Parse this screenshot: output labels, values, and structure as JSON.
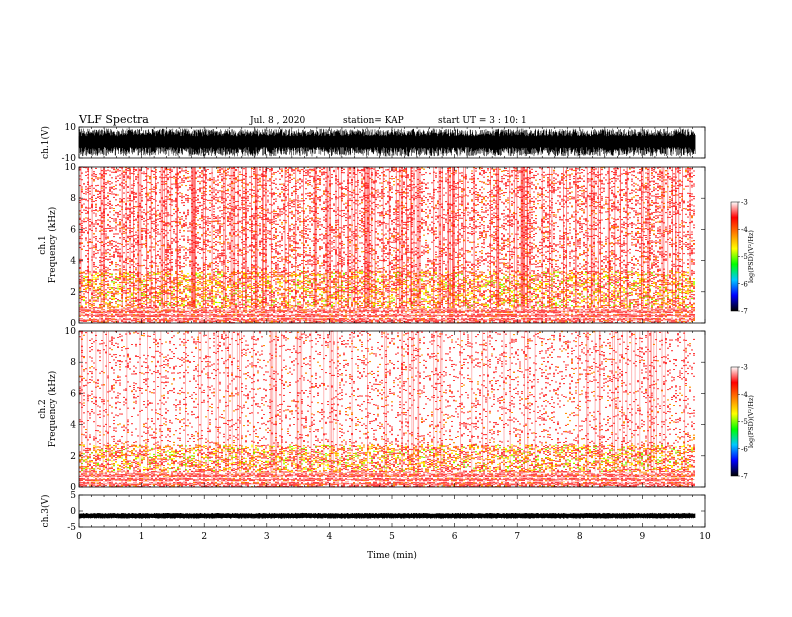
{
  "header": {
    "title": "VLF Spectra",
    "date": "Jul. 8 , 2020",
    "station": "station= KAP",
    "start": "start  UT =   3 : 10: 1"
  },
  "chart_data": [
    {
      "type": "line",
      "name": "ch1-waveform",
      "ylabel": "ch.1(V)",
      "ylim": [
        -10,
        10
      ],
      "yticks": [
        "10",
        "-10"
      ],
      "xlim": [
        0,
        10
      ],
      "amplitude_note": "dense black waveform spanning roughly -10 to 10"
    },
    {
      "type": "heatmap",
      "name": "ch1-spectrogram",
      "ylabel": "ch.1\nFrequency (kHz)",
      "ylim": [
        0,
        10
      ],
      "yticks": [
        "0",
        "2",
        "4",
        "6",
        "8",
        "10"
      ],
      "xlim": [
        0,
        10
      ],
      "data_end_min": 9.83,
      "bands": [
        {
          "fmin": 0.0,
          "fmax": 0.5,
          "level": -3.6
        },
        {
          "fmin": 0.5,
          "fmax": 1.0,
          "level": -3.3
        },
        {
          "fmin": 1.0,
          "fmax": 3.3,
          "level": -4.3
        },
        {
          "fmin": 3.3,
          "fmax": 10.0,
          "level": -3.4
        }
      ]
    },
    {
      "type": "heatmap",
      "name": "ch2-spectrogram",
      "ylabel": "ch.2\nFrequency (kHz)",
      "ylim": [
        0,
        10
      ],
      "yticks": [
        "0",
        "2",
        "4",
        "6",
        "8",
        "10"
      ],
      "xlim": [
        0,
        10
      ],
      "data_end_min": 9.83,
      "bands": [
        {
          "fmin": 0.0,
          "fmax": 0.5,
          "level": -3.5
        },
        {
          "fmin": 0.5,
          "fmax": 1.0,
          "level": -3.3
        },
        {
          "fmin": 1.0,
          "fmax": 2.7,
          "level": -4.2
        },
        {
          "fmin": 2.7,
          "fmax": 10.0,
          "level": -3.1
        }
      ]
    },
    {
      "type": "line",
      "name": "ch3-waveform",
      "ylabel": "ch.3(V)",
      "ylim": [
        -5,
        5
      ],
      "yticks": [
        "5",
        "0",
        "-5"
      ],
      "xlim": [
        0,
        10
      ],
      "level": -1.5
    }
  ],
  "colorbar": {
    "label": "log(PSD)(V²/Hz)",
    "range": [
      -7,
      -3
    ],
    "ticks": [
      "-3",
      "-4",
      "-5",
      "-6",
      "-7"
    ],
    "colors": [
      "#000000",
      "#0000ff",
      "#00c8ff",
      "#00ff00",
      "#ffff00",
      "#ff8000",
      "#ff0000",
      "#ffffff"
    ]
  },
  "xaxis": {
    "label": "Time (min)",
    "ticks": [
      "0",
      "1",
      "2",
      "3",
      "4",
      "5",
      "6",
      "7",
      "8",
      "9",
      "10"
    ]
  }
}
